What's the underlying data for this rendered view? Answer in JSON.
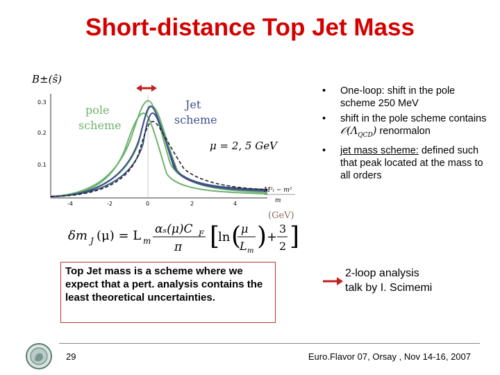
{
  "title": "Short-distance Top Jet Mass",
  "plot": {
    "ylabel": "B±(ŝ)",
    "yticks": [
      "0.3",
      "0.2",
      "0.1"
    ],
    "xticks": [
      "-4",
      "-2",
      "0",
      "2",
      "4"
    ],
    "pole_label_1": "pole",
    "pole_label_2": "scheme",
    "jet_label_1": "Jet",
    "jet_label_2": "scheme",
    "mu_label": "μ = 2, 5 GeV",
    "xaxis_label_1": "M²ₜ − m²",
    "xaxis_label_2": "m",
    "xaxis_unit": "(GeV)",
    "formula_lhs": "δm",
    "formula_sub": "J",
    "formula_arg": "(μ) = L",
    "formula_sub2": "m",
    "formula_frac_num": "αₛ(μ)C",
    "formula_frac_num_sub": "F",
    "formula_frac_den": "π",
    "formula_ln": "ln",
    "formula_inner_num": "μ",
    "formula_inner_den": "L",
    "formula_inner_den_sub": "m",
    "formula_plus": "+",
    "formula_half_num": "3",
    "formula_half_den": "2",
    "colors": {
      "green": "#6db36d",
      "blue": "#3d4f8a",
      "dashed": "#222222",
      "arrow": "#c02020"
    }
  },
  "bullets": {
    "b1": "One-loop: shift in the pole scheme 250 MeV",
    "b2_pre": "shift in the pole scheme contains",
    "b2_math": "𝒪(Λ",
    "b2_math_sub": "QCD",
    "b2_math_close": ")",
    "b2_post": "renormalon",
    "b3_u": "jet mass scheme:",
    "b3_rest": "defined such that peak located at the mass to all orders",
    "dot": "•"
  },
  "box_text": "Top Jet mass is a scheme where we expect that a pert. analysis contains the least theoretical uncertainties.",
  "note2_line1": "2-loop analysis",
  "note2_line2": "talk by I. Scimemi",
  "footer": {
    "page": "29",
    "conference": "Euro.Flavor 07, Orsay , Nov 14-16, 2007"
  }
}
